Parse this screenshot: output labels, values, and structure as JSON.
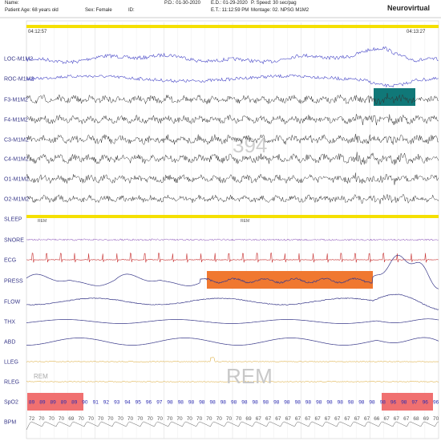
{
  "header": {
    "name_label": "Name:",
    "patient_age": "Patient Age: 68 years old",
    "sex": "Sex: Female",
    "id": "ID:",
    "pd": "P.D.: 01-30-2020",
    "ed": "E.D.: 01-29-2020",
    "et": "E.T.: 11:12:59 PM",
    "speed": "P. Speed: 30 sec/pag",
    "montage": "Montage: 02. NPSG M1M2",
    "brand": "Neurovirtual"
  },
  "epoch": {
    "start_time": "04:12:57",
    "end_time": "04:13:27",
    "watermark": "394"
  },
  "channels": [
    "LOC-M1M2",
    "ROC-M1M2",
    "F3-M1M2",
    "F4-M1M2",
    "C3-M1M2",
    "C4-M1M2",
    "O1-M1M2",
    "O2-M1M2",
    "SLEEP",
    "SNORE",
    "ECG",
    "PRESS",
    "FLOW",
    "THX",
    "ABD",
    "LLEG",
    "RLEG",
    "SpO2",
    "BPM"
  ],
  "sleep_stage": {
    "label_left": "REM",
    "label_mid": "REM",
    "watermark": "REM",
    "rleg_note": "REM"
  },
  "spo2": [
    89,
    89,
    89,
    89,
    89,
    90,
    91,
    92,
    93,
    94,
    95,
    96,
    97,
    98,
    98,
    98,
    98,
    98,
    98,
    98,
    98,
    98,
    98,
    98,
    98,
    98,
    98,
    98,
    98,
    98,
    98,
    98,
    98,
    98,
    96,
    98,
    97,
    96,
    96
  ],
  "bpm": [
    72,
    70,
    70,
    70,
    69,
    70,
    70,
    70,
    70,
    70,
    70,
    70,
    70,
    70,
    70,
    70,
    70,
    70,
    70,
    70,
    70,
    70,
    69,
    67,
    67,
    67,
    67,
    67,
    67,
    67,
    67,
    67,
    67,
    67,
    67,
    66,
    67,
    67,
    67,
    68,
    69,
    70
  ],
  "colors": {
    "eog": "#4a4ac8",
    "eeg": "#333333",
    "ecg": "#c83232",
    "snore": "#7a3ab0",
    "resp": "#3a3a8a",
    "leg": "#d8a020",
    "sleep_bar": "#f5e000",
    "press_box": "#f07830",
    "arousal_box": "#107878",
    "desat_box": "#f07070"
  }
}
